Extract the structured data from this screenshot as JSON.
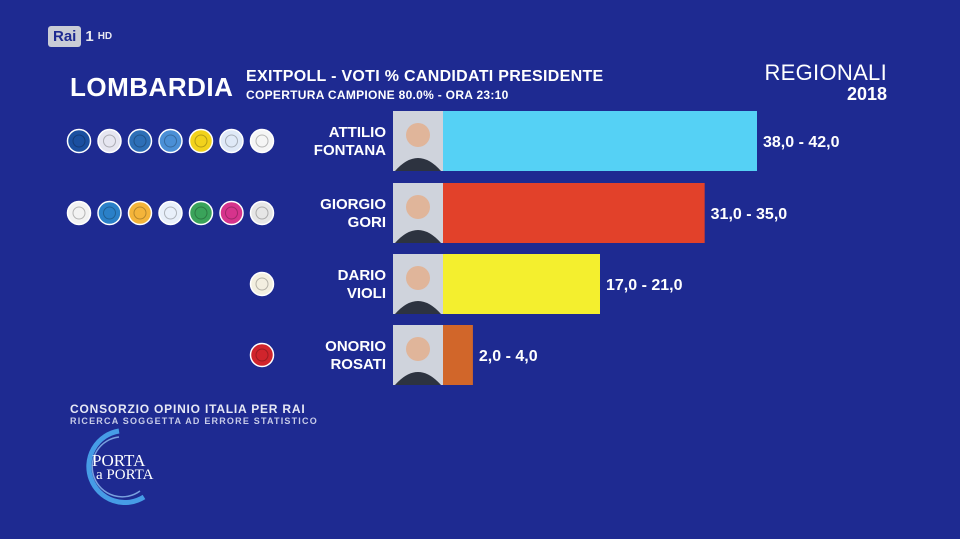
{
  "broadcaster": {
    "logo": "Rai",
    "channel": "1",
    "hd": "HD"
  },
  "header": {
    "region": "LOMBARDIA",
    "title": "EXITPOLL - VOTI % CANDIDATI PRESIDENTE",
    "subtitle": "COPERTURA CAMPIONE 80.0% - ORA 23:10",
    "election": "REGIONALI",
    "year": "2018"
  },
  "chart_data": {
    "type": "bar",
    "orientation": "horizontal",
    "title": "EXITPOLL - VOTI % CANDIDATI PRESIDENTE",
    "categories": [
      "ATTILIO FONTANA",
      "GIORGIO GORI",
      "DARIO VIOLI",
      "ONORIO ROSATI"
    ],
    "series": [
      {
        "ranges": [
          [
            38.0,
            42.0
          ],
          [
            31.0,
            35.0
          ],
          [
            17.0,
            21.0
          ],
          [
            2.0,
            4.0
          ]
        ],
        "values": [
          42.0,
          35.0,
          21.0,
          4.0
        ],
        "labels": [
          "38,0 - 42,0",
          "31,0 - 35,0",
          "17,0 - 21,0",
          "2,0 - 4,0"
        ]
      }
    ],
    "colors": [
      "#55d1f5",
      "#e2412a",
      "#f4ef2e",
      "#d1662a"
    ],
    "candidates": [
      {
        "first": "ATTILIO",
        "last": "FONTANA",
        "party_logo_count": 7,
        "logo_colors": [
          "#1a4fa0",
          "#e6e6f0",
          "#2d6fb7",
          "#4a8fd6",
          "#f2d21b",
          "#dfe9f7",
          "#f5f5f5"
        ]
      },
      {
        "first": "GIORGIO",
        "last": "GORI",
        "party_logo_count": 7,
        "logo_colors": [
          "#f2f2f2",
          "#2a80c8",
          "#f4b43a",
          "#e8f0fa",
          "#3aa35a",
          "#d6338c",
          "#e6e6e6"
        ]
      },
      {
        "first": "DARIO",
        "last": "VIOLI",
        "party_logo_count": 1,
        "logo_colors": [
          "#f3efe0"
        ]
      },
      {
        "first": "ONORIO",
        "last": "ROSATI",
        "party_logo_count": 1,
        "logo_colors": [
          "#d0242c"
        ]
      }
    ],
    "xlim": [
      0,
      42.0
    ],
    "grid": false,
    "legend": "none"
  },
  "footer": {
    "source": "CONSORZIO OPINIO ITALIA PER RAI",
    "disclaimer": "RICERCA SOGGETTA AD ERRORE STATISTICO",
    "show_logo_line1": "PORTA",
    "show_logo_line2": "a PORTA"
  }
}
